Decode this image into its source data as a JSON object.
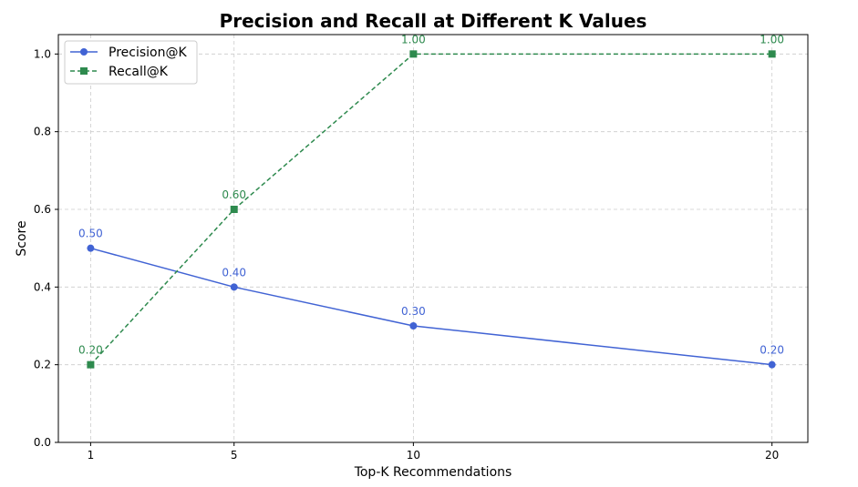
{
  "chart_data": {
    "type": "line",
    "title": "Precision and Recall at Different K Values",
    "xlabel": "Top-K Recommendations",
    "ylabel": "Score",
    "x": [
      1,
      5,
      10,
      20
    ],
    "xticks": [
      "1",
      "5",
      "10",
      "20"
    ],
    "xlim": [
      0.1,
      21.0
    ],
    "ylim": [
      0.0,
      1.05
    ],
    "yticks": [
      "0.0",
      "0.2",
      "0.4",
      "0.6",
      "0.8",
      "1.0"
    ],
    "grid": true,
    "legend_position": "top-left",
    "series": [
      {
        "name": "Precision@K",
        "values": [
          0.5,
          0.4,
          0.3,
          0.2
        ],
        "labels": [
          "0.50",
          "0.40",
          "0.30",
          "0.20"
        ],
        "color": "#4163d4",
        "line_style": "solid",
        "marker": "circle"
      },
      {
        "name": "Recall@K",
        "values": [
          0.2,
          0.6,
          1.0,
          1.0
        ],
        "labels": [
          "0.20",
          "0.60",
          "1.00",
          "1.00"
        ],
        "color": "#2e8a4e",
        "line_style": "dashed",
        "marker": "square"
      }
    ]
  }
}
